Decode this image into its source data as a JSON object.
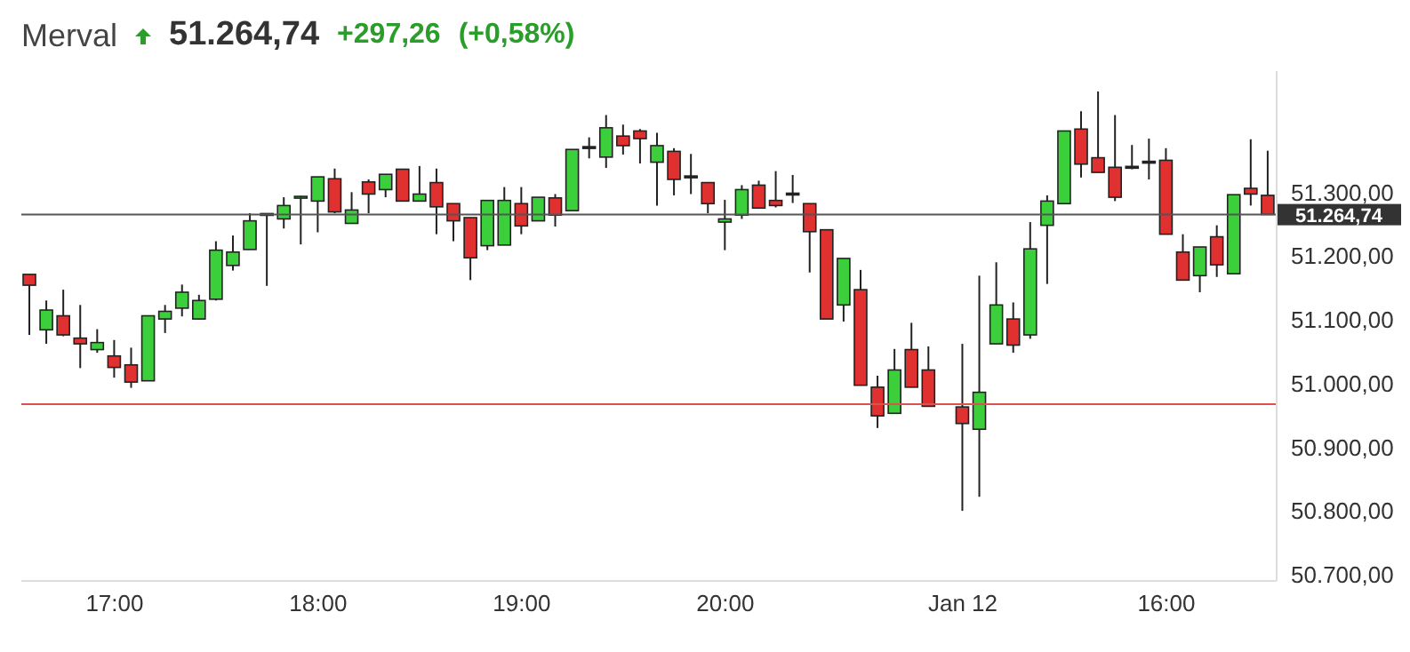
{
  "chart_data": {
    "type": "candlestick",
    "title": "Merval",
    "annotations": [
      "51.264,74",
      "+297,26",
      "(+0,58%)"
    ],
    "categories": [
      null,
      null,
      null,
      null,
      null,
      "17:00",
      null,
      null,
      null,
      null,
      null,
      null,
      null,
      null,
      null,
      null,
      null,
      "18:00",
      null,
      null,
      null,
      null,
      null,
      null,
      null,
      null,
      null,
      null,
      null,
      "19:00",
      null,
      null,
      null,
      null,
      null,
      null,
      null,
      null,
      null,
      null,
      null,
      "20:00",
      null,
      null,
      null,
      null,
      null,
      null,
      null,
      null,
      null,
      null,
      null,
      null,
      null,
      "Jan 12",
      null,
      null,
      null,
      null,
      null,
      null,
      null,
      null,
      null,
      null,
      null,
      "16:00",
      null,
      null,
      null,
      null,
      null,
      null
    ],
    "ohlc": [
      [
        51171,
        51171,
        51076,
        51154
      ],
      [
        51084,
        51130,
        51062,
        51115
      ],
      [
        51106,
        51147,
        51074,
        51076
      ],
      [
        51071,
        51123,
        51024,
        51062
      ],
      [
        51053,
        51085,
        51048,
        51064
      ],
      [
        51043,
        51068,
        51009,
        51025
      ],
      [
        51029,
        51056,
        50993,
        51002
      ],
      [
        51004,
        51106,
        51004,
        51106
      ],
      [
        51101,
        51123,
        51079,
        51113
      ],
      [
        51118,
        51155,
        51105,
        51143
      ],
      [
        51101,
        51139,
        51100,
        51130
      ],
      [
        51132,
        51223,
        51130,
        51209
      ],
      [
        51185,
        51232,
        51177,
        51206
      ],
      [
        51210,
        51267,
        51210,
        51255
      ],
      [
        51265,
        51265,
        51153,
        51265
      ],
      [
        51258,
        51292,
        51243,
        51279
      ],
      [
        51290,
        51294,
        51218,
        51292
      ],
      [
        51286,
        51324,
        51237,
        51324
      ],
      [
        51321,
        51337,
        51267,
        51269
      ],
      [
        51251,
        51300,
        51251,
        51272
      ],
      [
        51316,
        51320,
        51267,
        51297
      ],
      [
        51304,
        51328,
        51292,
        51328
      ],
      [
        51336,
        51336,
        51286,
        51286
      ],
      [
        51286,
        51341,
        51286,
        51297
      ],
      [
        51315,
        51337,
        51234,
        51277
      ],
      [
        51282,
        51282,
        51223,
        51255
      ],
      [
        51260,
        51260,
        51162,
        51197
      ],
      [
        51216,
        51287,
        51209,
        51287
      ],
      [
        51217,
        51308,
        51217,
        51287
      ],
      [
        51282,
        51308,
        51234,
        51247
      ],
      [
        51255,
        51292,
        51255,
        51292
      ],
      [
        51291,
        51297,
        51246,
        51264
      ],
      [
        51271,
        51367,
        51271,
        51367
      ],
      [
        51370,
        51386,
        51353,
        51370
      ],
      [
        51355,
        51421,
        51338,
        51401
      ],
      [
        51388,
        51406,
        51359,
        51373
      ],
      [
        51396,
        51399,
        51345,
        51384
      ],
      [
        51347,
        51393,
        51279,
        51373
      ],
      [
        51364,
        51369,
        51295,
        51320
      ],
      [
        51324,
        51360,
        51297,
        51324
      ],
      [
        51315,
        51315,
        51267,
        51282
      ],
      [
        51253,
        51288,
        51209,
        51258
      ],
      [
        51264,
        51311,
        51258,
        51304
      ],
      [
        51311,
        51318,
        51275,
        51275
      ],
      [
        51287,
        51333,
        51276,
        51279
      ],
      [
        51297,
        51327,
        51283,
        51297
      ],
      [
        51282,
        51282,
        51174,
        51238
      ],
      [
        51241,
        51241,
        51101,
        51101
      ],
      [
        51123,
        51196,
        51097,
        51196
      ],
      [
        51147,
        51178,
        50997,
        50997
      ],
      [
        50994,
        51012,
        50930,
        50949
      ],
      [
        50953,
        51054,
        50953,
        51021
      ],
      [
        51053,
        51095,
        50994,
        50994
      ],
      [
        51021,
        51058,
        50964,
        50964
      ],
      null,
      [
        50963,
        51062,
        50800,
        50937
      ],
      [
        50928,
        51169,
        50822,
        50986
      ],
      [
        51062,
        51190,
        51062,
        51123
      ],
      [
        51101,
        51127,
        51048,
        51060
      ],
      [
        51076,
        51253,
        51070,
        51211
      ],
      [
        51248,
        51295,
        51156,
        51286
      ],
      [
        51282,
        51396,
        51282,
        51396
      ],
      [
        51399,
        51427,
        51323,
        51344
      ],
      [
        51354,
        51458,
        51331,
        51331
      ],
      [
        51339,
        51421,
        51286,
        51292
      ],
      [
        51339,
        51374,
        51336,
        51339
      ],
      [
        51347,
        51384,
        51320,
        51347
      ],
      [
        51350,
        51369,
        51234,
        51234
      ],
      [
        51206,
        51234,
        51162,
        51162
      ],
      [
        51169,
        51214,
        51143,
        51214
      ],
      [
        51230,
        51248,
        51167,
        51186
      ],
      [
        51172,
        51296,
        51172,
        51296
      ],
      [
        51306,
        51383,
        51279,
        51297
      ],
      [
        51295,
        51365,
        51265,
        51265
      ]
    ],
    "colors": [
      "#e03030",
      "#3ccf3c",
      "#e03030",
      "#e03030",
      "#3ccf3c",
      "#e03030",
      "#e03030",
      "#3ccf3c",
      "#3ccf3c",
      "#3ccf3c",
      "#3ccf3c",
      "#3ccf3c",
      "#3ccf3c",
      "#3ccf3c",
      "#222222",
      "#3ccf3c",
      "#3ccf3c",
      "#3ccf3c",
      "#e03030",
      "#3ccf3c",
      "#e03030",
      "#3ccf3c",
      "#e03030",
      "#3ccf3c",
      "#e03030",
      "#e03030",
      "#e03030",
      "#3ccf3c",
      "#3ccf3c",
      "#e03030",
      "#3ccf3c",
      "#e03030",
      "#3ccf3c",
      "#222222",
      "#3ccf3c",
      "#e03030",
      "#e03030",
      "#3ccf3c",
      "#e03030",
      "#222222",
      "#e03030",
      "#3ccf3c",
      "#3ccf3c",
      "#e03030",
      "#e03030",
      "#222222",
      "#e03030",
      "#e03030",
      "#3ccf3c",
      "#e03030",
      "#e03030",
      "#3ccf3c",
      "#e03030",
      "#e03030",
      null,
      "#e03030",
      "#3ccf3c",
      "#3ccf3c",
      "#e03030",
      "#3ccf3c",
      "#3ccf3c",
      "#3ccf3c",
      "#e03030",
      "#e03030",
      "#e03030",
      "#222222",
      "#222222",
      "#e03030",
      "#e03030",
      "#3ccf3c",
      "#e03030",
      "#3ccf3c",
      "#e03030",
      "#e03030"
    ],
    "ylim": [
      50690,
      51490
    ],
    "yticks": [
      {
        "value": 50700,
        "label": "50.700,00"
      },
      {
        "value": 50800,
        "label": "50.800,00"
      },
      {
        "value": 50900,
        "label": "50.900,00"
      },
      {
        "value": 51000,
        "label": "51.000,00"
      },
      {
        "value": 51100,
        "label": "51.100,00"
      },
      {
        "value": 51200,
        "label": "51.200,00"
      },
      {
        "value": 51300,
        "label": "51.300,00"
      }
    ],
    "ref_lines": [
      {
        "axis": "y",
        "value": 51264.74,
        "label": "51.264,74",
        "color": "#555555"
      },
      {
        "axis": "y",
        "value": 50967.48,
        "color": "#d9534f"
      }
    ]
  }
}
